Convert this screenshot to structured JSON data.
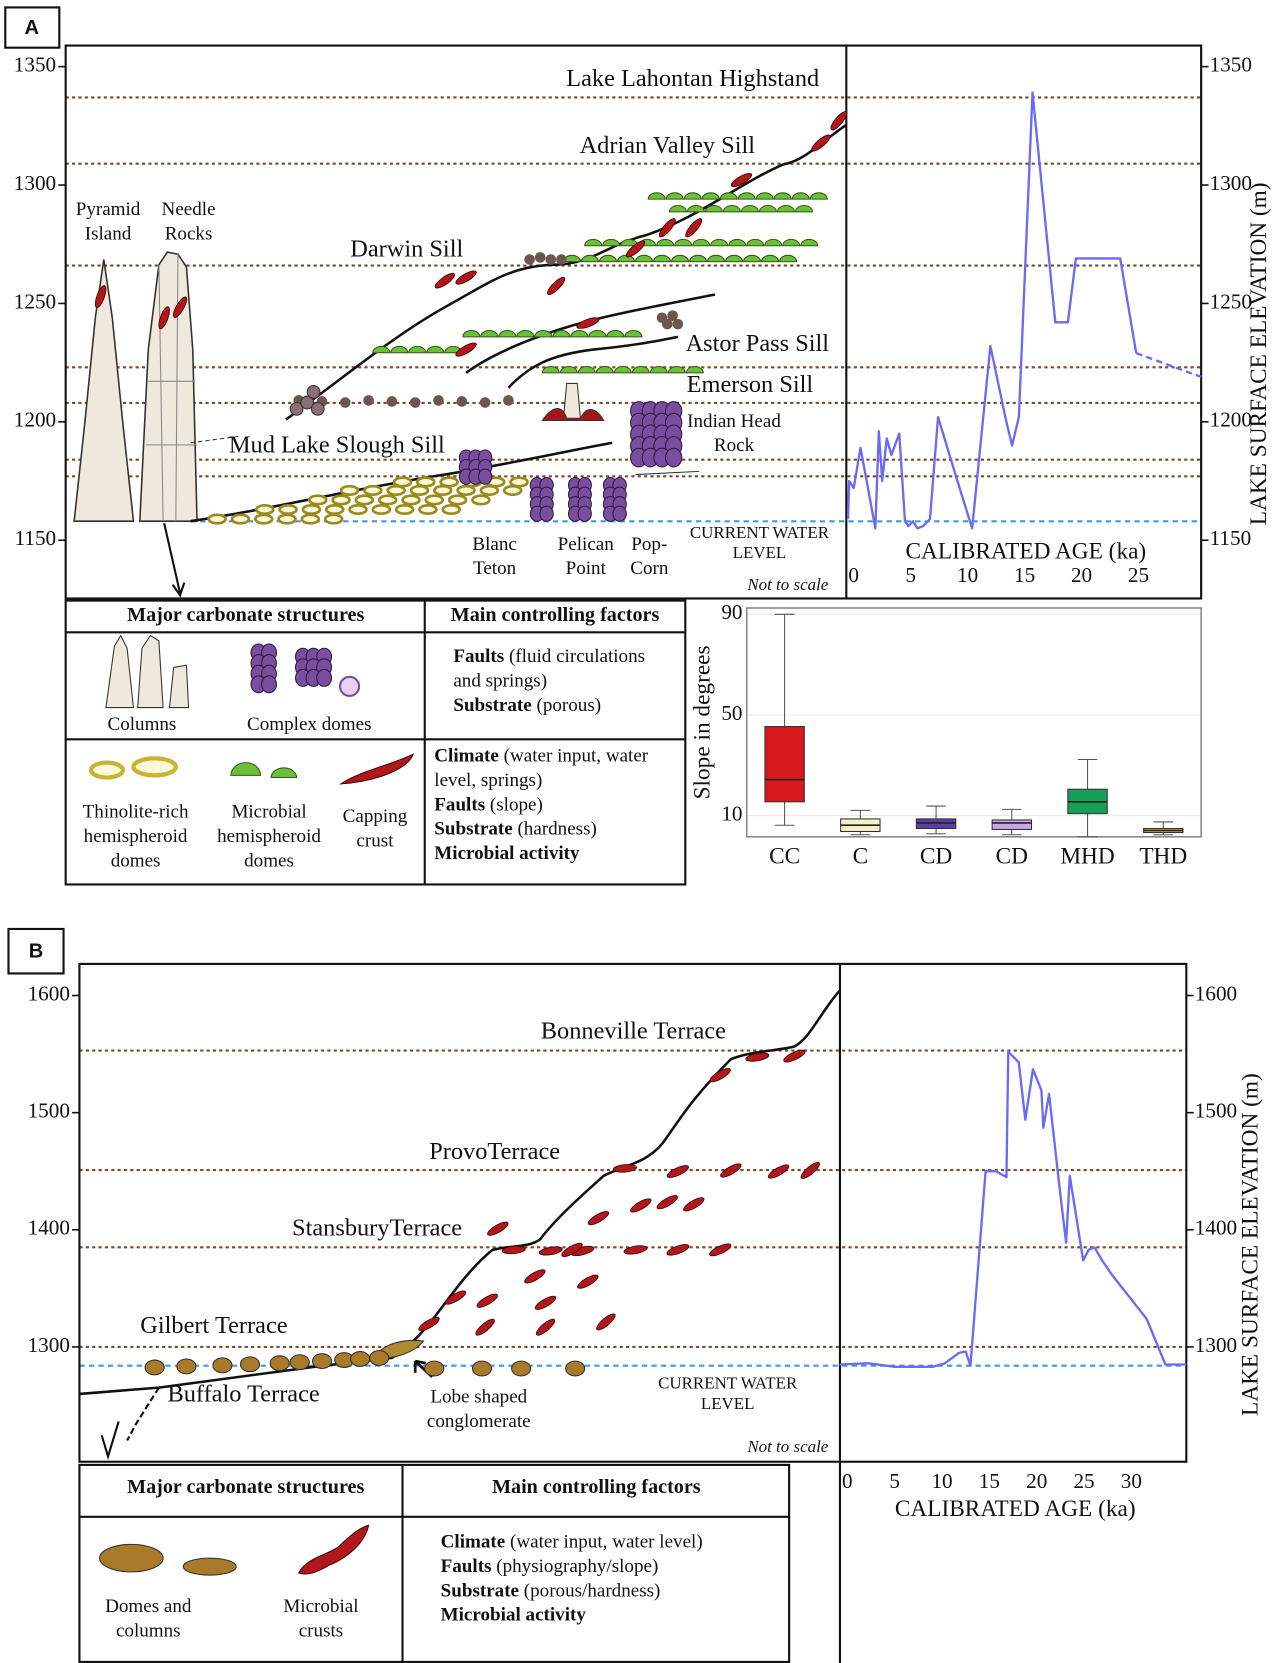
{
  "panel_a": {
    "label": "A",
    "sites": [
      "Pyramid Island",
      "Needle Rocks",
      "Indian Head Rock",
      "Blanc Teton",
      "Pelican Point",
      "Pop-Corn"
    ],
    "note": "Not to scale",
    "table": {
      "headers": [
        "Major carbonate structures",
        "Main controlling factors"
      ],
      "rows": [
        {
          "structures": [
            "Columns",
            "Complex domes"
          ],
          "factors": [
            {
              "term": "Faults",
              "detail": "(fluid circulations and springs)"
            },
            {
              "term": "Substrate",
              "detail": "(porous)"
            }
          ]
        },
        {
          "structures": [
            "Thinolite-rich hemispheroid domes",
            "Microbial hemispheroid domes",
            "Capping crust"
          ],
          "factors": [
            {
              "term": "Climate",
              "detail": "(water input, water level, springs)"
            },
            {
              "term": "Faults",
              "detail": "(slope)"
            },
            {
              "term": "Substrate",
              "detail": "(hardness)"
            },
            {
              "term": "Microbial activity"
            }
          ]
        }
      ]
    }
  },
  "panel_b": {
    "label": "B",
    "sites": [
      "Buffalo Terrace",
      "Lobe shaped conglomerate"
    ],
    "note": "Not to scale",
    "table": {
      "headers": [
        "Major carbonate structures",
        "Main controlling factors"
      ],
      "rows": [
        {
          "structures": [
            "Domes and columns",
            "Microbial crusts"
          ],
          "factors": [
            {
              "term": "Climate",
              "detail": "(water input, water level)"
            },
            {
              "term": "Faults",
              "detail": "(physiography/slope)"
            },
            {
              "term": "Substrate",
              "detail": "(porous/hardness)"
            },
            {
              "term": "Microbial activity"
            }
          ]
        }
      ]
    }
  },
  "chart_data": [
    {
      "type": "line",
      "xlabel": "CALIBRATED AGE (ka)",
      "ylabel": "LAKE SURFACE ELEVATION (m)",
      "x": [
        -0.5,
        -0.4,
        0,
        0.6,
        1.1,
        1.9,
        2.2,
        2.5,
        2.9,
        3.3,
        4,
        4.5,
        4.8,
        5.2,
        5.6,
        6.1,
        6.7,
        7.4,
        9.3,
        10.4,
        12,
        13.4,
        13.9,
        14.5,
        15.7,
        17.7,
        18.8,
        19.5,
        23.4,
        24.8,
        30.5
      ],
      "series": [
        {
          "color": "#6b6bf2",
          "values": [
            1159,
            1175,
            1172,
            1189,
            1176,
            1155,
            1196,
            1175,
            1193,
            1186,
            1195,
            1158,
            1156,
            1158,
            1155,
            1156,
            1159,
            1202,
            1172,
            1155,
            1232,
            1200,
            1190,
            1202,
            1339,
            1242,
            1242,
            1269,
            1269,
            1229,
            null
          ]
        },
        {
          "color": "#6b6bf2",
          "dashed": true,
          "values": [
            null,
            null,
            null,
            null,
            null,
            null,
            null,
            null,
            null,
            null,
            null,
            null,
            null,
            null,
            null,
            null,
            null,
            null,
            null,
            null,
            null,
            null,
            null,
            null,
            null,
            null,
            null,
            null,
            null,
            1229,
            1219
          ]
        }
      ],
      "xlim": [
        -0.65,
        30.5
      ],
      "ylim": [
        1125.4,
        1358.9
      ],
      "xticks": [
        0,
        5,
        10,
        15,
        20,
        25
      ],
      "yticks": [
        1150,
        1200,
        1250,
        1300,
        1350
      ],
      "reference_lines": [
        {
          "label": "Lake Lahontan Highstand",
          "elevation": 1337
        },
        {
          "label": "Adrian Valley Sill",
          "elevation": 1309
        },
        {
          "label": "Darwin Sill",
          "elevation": 1266
        },
        {
          "label": "Astor Pass Sill",
          "elevation": 1223
        },
        {
          "label": "Emerson Sill",
          "elevation": 1208
        },
        {
          "label": "Mud Lake Slough Sill",
          "elevation": 1184
        },
        {
          "elevation": 1177
        }
      ],
      "water_level": {
        "label": "CURRENT WATER LEVEL",
        "elevation": 1158
      }
    },
    {
      "type": "box",
      "ylabel": "Slope in degrees",
      "categories": [
        "CC",
        "C",
        "CD",
        "CD",
        "MHD",
        "THD"
      ],
      "boxes": [
        {
          "min": 6.2,
          "q1": 15.5,
          "median": 24.3,
          "q3": 45.4,
          "max": 90,
          "color": "#d7191c"
        },
        {
          "min": 2.4,
          "q1": 3.7,
          "median": 6.2,
          "q3": 8.7,
          "max": 12.1,
          "color": "#f5f0c8"
        },
        {
          "min": 2.8,
          "q1": 4.9,
          "median": 7.1,
          "q3": 8.7,
          "max": 13.8,
          "color": "#5b3fa8"
        },
        {
          "min": 2.4,
          "q1": 4.5,
          "median": 7.1,
          "q3": 8.3,
          "max": 12.5,
          "color": "#c8a6e8"
        },
        {
          "min": 1.6,
          "q1": 10.8,
          "median": 15.5,
          "q3": 20.5,
          "max": 32.3,
          "color": "#15a05a"
        },
        {
          "min": 2.4,
          "q1": 3.3,
          "median": 4.1,
          "q3": 4.9,
          "max": 7.5,
          "color": "#c8b43c"
        }
      ],
      "ylim": [
        1.6,
        92.5
      ],
      "yticks": [
        10,
        50,
        90
      ],
      "grid": true
    },
    {
      "type": "line",
      "xlabel": "CALIBRATED AGE (ka)",
      "ylabel": "LAKE SURFACE ELEVATION (m)",
      "x": [
        -0.8,
        2.2,
        5,
        9,
        10.3,
        11.8,
        12.5,
        13,
        14.6,
        15.7,
        16.8,
        17,
        18.1,
        18.8,
        19.6,
        20.5,
        20.7,
        21.3,
        22.4,
        23.1,
        23.5,
        24.2,
        24.9,
        25.5,
        26.1,
        26.9,
        28,
        31.6,
        33.6,
        35.8
      ],
      "series": [
        {
          "color": "#6b6bf2",
          "values": [
            1285,
            1286,
            1283,
            1283,
            1286,
            1295,
            1296,
            1284,
            1450,
            1450,
            1445,
            1552,
            1543,
            1494,
            1537,
            1519,
            1487,
            1516,
            1437,
            1389,
            1446,
            1410,
            1374,
            1383,
            1385,
            1374,
            1361,
            1324,
            1285,
            1285
          ]
        }
      ],
      "xlim": [
        -0.78,
        35.8
      ],
      "ylim": [
        1202,
        1627
      ],
      "xticks": [
        0,
        5,
        10,
        15,
        20,
        25,
        30
      ],
      "yticks": [
        1300,
        1400,
        1500,
        1600
      ],
      "reference_lines": [
        {
          "label": "Bonneville Terrace",
          "elevation": 1553
        },
        {
          "label": "ProvoTerrace",
          "elevation": 1451
        },
        {
          "label": "StansburyTerrace",
          "elevation": 1385
        },
        {
          "label": "Gilbert Terrace",
          "elevation": 1300
        }
      ],
      "water_level": {
        "label": "CURRENT WATER LEVEL",
        "elevation": 1284
      }
    }
  ]
}
